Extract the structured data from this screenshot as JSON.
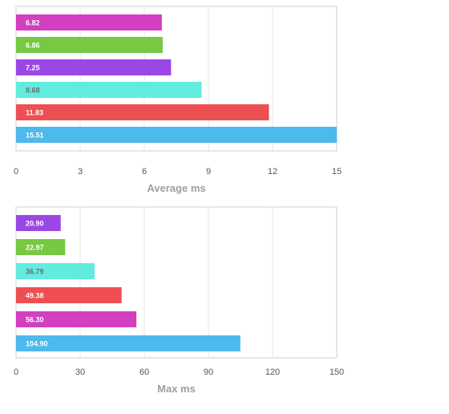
{
  "chart_data": [
    {
      "type": "bar",
      "orientation": "horizontal",
      "xlabel": "Average ms",
      "xlim": [
        0,
        15
      ],
      "xticks": [
        0,
        3,
        6,
        9,
        12,
        15
      ],
      "grid": true,
      "bars": [
        {
          "value": 6.82,
          "label": "6.82",
          "color": "#d23fc0"
        },
        {
          "value": 6.86,
          "label": "6.86",
          "color": "#77c843"
        },
        {
          "value": 7.25,
          "label": "7.25",
          "color": "#9b47e5"
        },
        {
          "value": 8.68,
          "label": "8.68",
          "color": "#62ecdf"
        },
        {
          "value": 11.83,
          "label": "11.83",
          "color": "#ee4f53"
        },
        {
          "value": 15.51,
          "label": "15.51",
          "color": "#4db9ec"
        }
      ]
    },
    {
      "type": "bar",
      "orientation": "horizontal",
      "xlabel": "Max ms",
      "xlim": [
        0,
        150
      ],
      "xticks": [
        0,
        30,
        60,
        90,
        120,
        150
      ],
      "grid": true,
      "bars": [
        {
          "value": 20.9,
          "label": "20.90",
          "color": "#9b47e5"
        },
        {
          "value": 22.97,
          "label": "22.97",
          "color": "#77c843"
        },
        {
          "value": 36.79,
          "label": "36.79",
          "color": "#62ecdf"
        },
        {
          "value": 49.38,
          "label": "49.38",
          "color": "#ee4f53"
        },
        {
          "value": 56.3,
          "label": "56.30",
          "color": "#d23fc0"
        },
        {
          "value": 104.9,
          "label": "104.90",
          "color": "#4db9ec"
        }
      ]
    }
  ]
}
